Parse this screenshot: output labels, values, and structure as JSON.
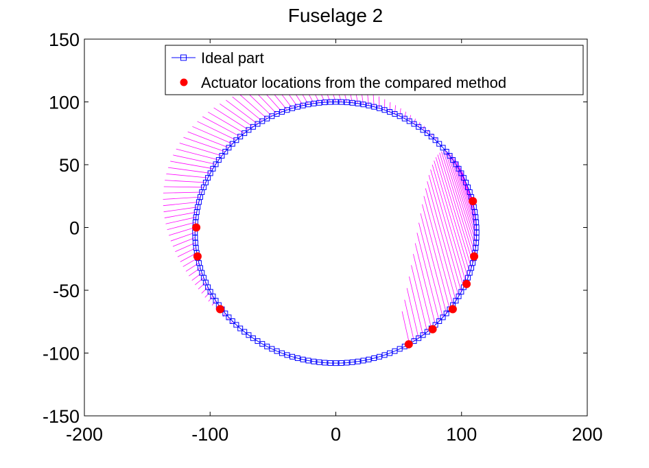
{
  "chart_data": {
    "type": "scatter",
    "title": "Fuselage 2",
    "xlabel": "",
    "ylabel": "",
    "xlim": [
      -200,
      200
    ],
    "ylim": [
      -150,
      150
    ],
    "xticks": [
      -200,
      -100,
      0,
      100,
      200
    ],
    "yticks": [
      150,
      100,
      50,
      0,
      -50,
      -100,
      -150
    ],
    "xtick_labels": [
      "-200",
      "-100",
      "0",
      "100",
      "200"
    ],
    "ytick_labels": [
      "150",
      "100",
      "50",
      "0",
      "-50",
      "-100",
      "-150"
    ],
    "grid": false,
    "legend_position": "top-right",
    "series": [
      {
        "name": "Ideal part",
        "marker": "square",
        "color": "#0000ff",
        "shape": "ellipse",
        "center": [
          0,
          -4
        ],
        "radii": [
          112,
          104
        ],
        "n_points": 160
      },
      {
        "name": "Actuator locations from the compared method",
        "marker": "circle",
        "color": "#ff0000",
        "points": [
          [
            -111,
            0
          ],
          [
            -110,
            -23
          ],
          [
            -92,
            -65
          ],
          [
            58,
            -93
          ],
          [
            77,
            -81
          ],
          [
            93,
            -65
          ],
          [
            104,
            -45
          ],
          [
            110,
            -23
          ],
          [
            109,
            21
          ]
        ]
      },
      {
        "name": "",
        "style": "displacement-whiskers",
        "color": "#ff00ff",
        "note_values_from_image": "magenta line segments from ideal contour outward"
      }
    ]
  }
}
